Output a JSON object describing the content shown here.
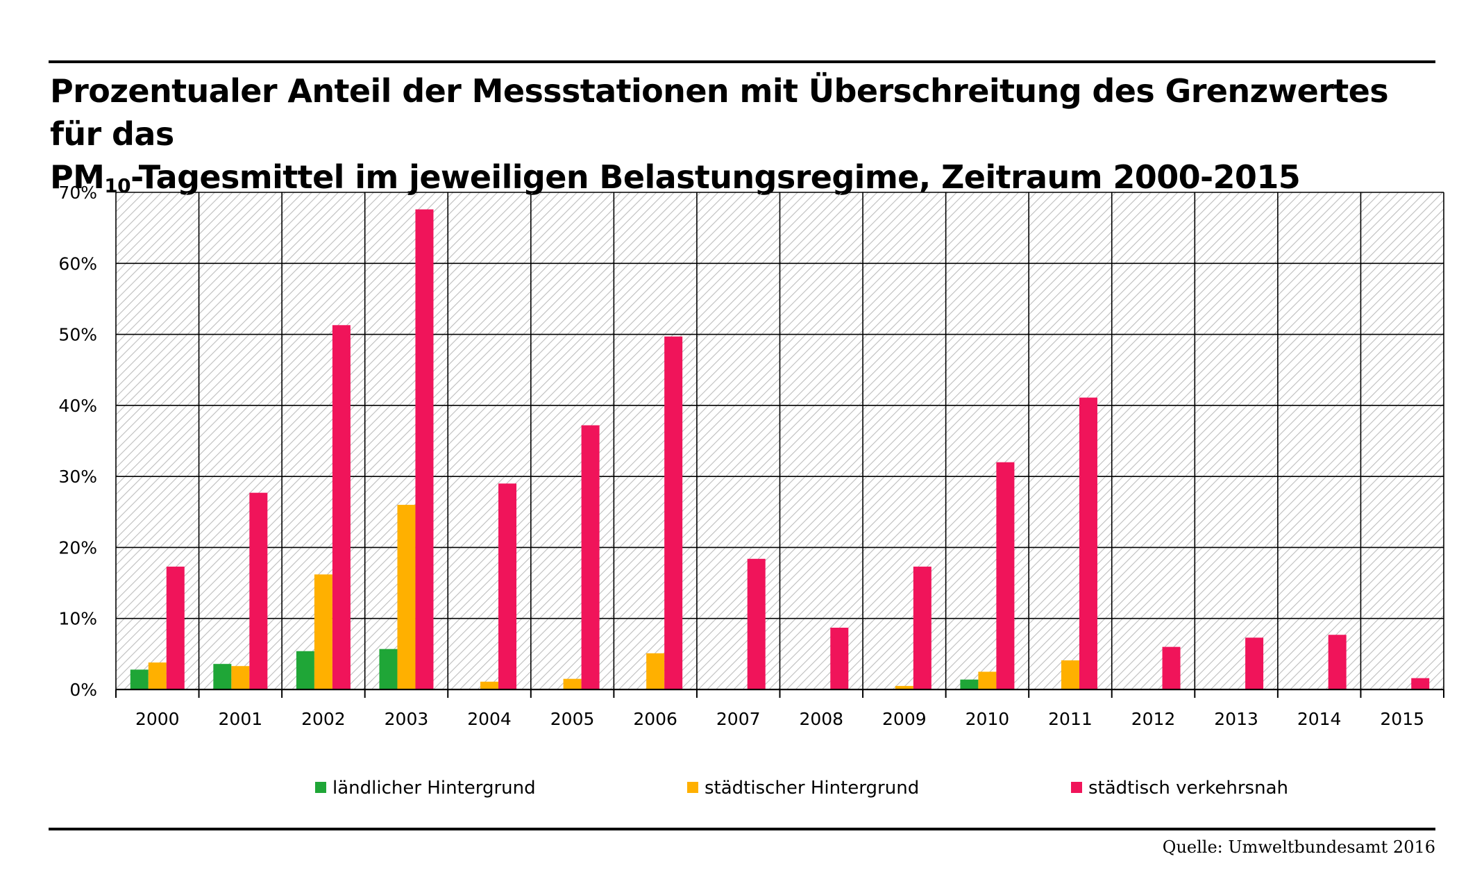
{
  "title": {
    "line1": "Prozentualer Anteil der Messstationen mit Überschreitung des Grenzwertes für das",
    "line2_prefix": "PM",
    "line2_subscript": "10",
    "line2_rest": "-Tagesmittel im jeweiligen Belastungsregime, Zeitraum 2000-2015"
  },
  "source": "Quelle: Umweltbundesamt 2016",
  "colors": {
    "laendlich": "#1fa637",
    "staedtisch_hintergrund": "#ffb000",
    "verkehrsnah": "#f0145a",
    "grid": "#000000",
    "hatch": "#b8b8b8"
  },
  "chart_data": {
    "type": "bar",
    "title": "Prozentualer Anteil der Messstationen mit Überschreitung des Grenzwertes für das PM10-Tagesmittel im jeweiligen Belastungsregime, Zeitraum 2000-2015",
    "xlabel": "",
    "ylabel": "",
    "ylim": [
      0,
      70
    ],
    "y_ticks": [
      "0%",
      "10%",
      "20%",
      "30%",
      "40%",
      "50%",
      "60%",
      "70%"
    ],
    "y_tick_values": [
      0,
      10,
      20,
      30,
      40,
      50,
      60,
      70
    ],
    "categories": [
      "2000",
      "2001",
      "2002",
      "2003",
      "2004",
      "2005",
      "2006",
      "2007",
      "2008",
      "2009",
      "2010",
      "2011",
      "2012",
      "2013",
      "2014",
      "2015"
    ],
    "legend_position": "bottom",
    "series": [
      {
        "name": "ländlicher Hintergrund",
        "color": "#1fa637",
        "values": [
          2.8,
          3.6,
          5.4,
          5.7,
          0,
          0,
          0,
          0,
          0,
          0,
          1.4,
          0,
          0,
          0,
          0,
          0
        ]
      },
      {
        "name": "städtischer Hintergrund",
        "color": "#ffb000",
        "values": [
          3.8,
          3.3,
          16.2,
          26.0,
          1.1,
          1.5,
          5.1,
          0,
          0,
          0.5,
          2.5,
          4.1,
          0,
          0,
          0,
          0
        ]
      },
      {
        "name": "städtisch verkehrsnah",
        "color": "#f0145a",
        "values": [
          17.3,
          27.7,
          51.3,
          67.6,
          29.0,
          37.2,
          49.7,
          18.4,
          8.7,
          17.3,
          32.0,
          41.1,
          6.0,
          7.3,
          7.7,
          1.6
        ]
      }
    ]
  }
}
